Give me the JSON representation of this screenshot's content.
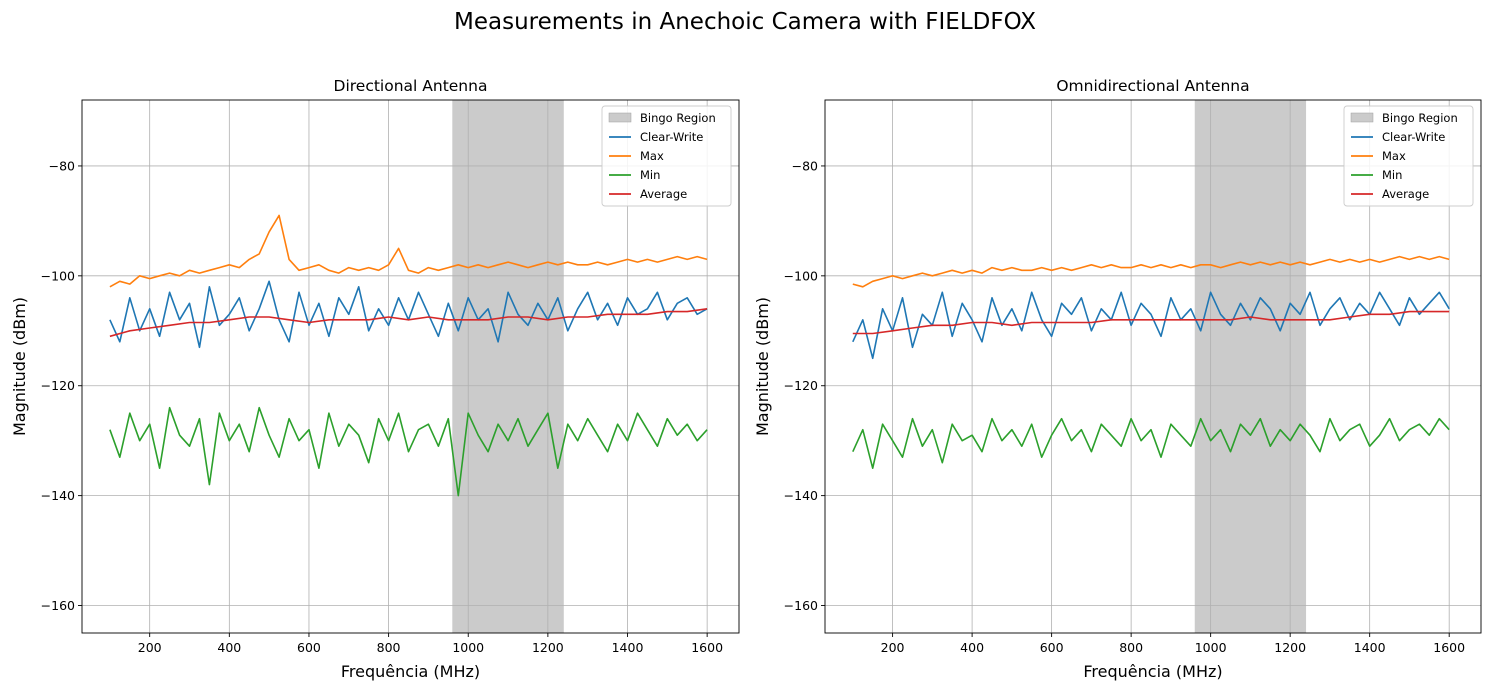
{
  "figure": {
    "suptitle": "Measurements in Anechoic Camera with FIELDFOX"
  },
  "colors": {
    "clear_write": "#1f77b4",
    "max": "#ff7f0e",
    "min": "#2ca02c",
    "average": "#d62728",
    "region": "#bdbdbd",
    "grid": "#b0b0b0"
  },
  "chart_data": [
    {
      "type": "line",
      "title": "Directional Antenna",
      "xlabel": "Frequência (MHz)",
      "ylabel": "Magnitude (dBm)",
      "xlim": [
        30,
        1680
      ],
      "ylim": [
        -165,
        -68
      ],
      "xticks": [
        200,
        400,
        600,
        800,
        1000,
        1200,
        1400,
        1600
      ],
      "yticks": [
        -160,
        -140,
        -120,
        -100,
        -80
      ],
      "grid": true,
      "legend_position": "upper right",
      "shaded_region": {
        "label": "Bingo Region",
        "x_range": [
          960,
          1240
        ]
      },
      "series": [
        {
          "name": "Clear-Write",
          "key": "clear_write",
          "x": [
            100,
            125,
            150,
            175,
            200,
            225,
            250,
            275,
            300,
            325,
            350,
            375,
            400,
            425,
            450,
            475,
            500,
            525,
            550,
            575,
            600,
            625,
            650,
            675,
            700,
            725,
            750,
            775,
            800,
            825,
            850,
            875,
            900,
            925,
            950,
            975,
            1000,
            1025,
            1050,
            1075,
            1100,
            1125,
            1150,
            1175,
            1200,
            1225,
            1250,
            1275,
            1300,
            1325,
            1350,
            1375,
            1400,
            1425,
            1450,
            1475,
            1500,
            1525,
            1550,
            1575,
            1600
          ],
          "y": [
            -108,
            -112,
            -104,
            -110,
            -106,
            -111,
            -103,
            -108,
            -105,
            -113,
            -102,
            -109,
            -107,
            -104,
            -110,
            -106,
            -101,
            -108,
            -112,
            -103,
            -109,
            -105,
            -111,
            -104,
            -107,
            -102,
            -110,
            -106,
            -109,
            -104,
            -108,
            -103,
            -107,
            -111,
            -105,
            -110,
            -104,
            -108,
            -106,
            -112,
            -103,
            -107,
            -109,
            -105,
            -108,
            -104,
            -110,
            -106,
            -103,
            -108,
            -105,
            -109,
            -104,
            -107,
            -106,
            -103,
            -108,
            -105,
            -104,
            -107,
            -106
          ]
        },
        {
          "name": "Max",
          "key": "max",
          "x": [
            100,
            125,
            150,
            175,
            200,
            225,
            250,
            275,
            300,
            325,
            350,
            375,
            400,
            425,
            450,
            475,
            500,
            525,
            550,
            575,
            600,
            625,
            650,
            675,
            700,
            725,
            750,
            775,
            800,
            825,
            850,
            875,
            900,
            925,
            950,
            975,
            1000,
            1025,
            1050,
            1075,
            1100,
            1125,
            1150,
            1175,
            1200,
            1225,
            1250,
            1275,
            1300,
            1325,
            1350,
            1375,
            1400,
            1425,
            1450,
            1475,
            1500,
            1525,
            1550,
            1575,
            1600
          ],
          "y": [
            -102,
            -101,
            -101.5,
            -100,
            -100.5,
            -100,
            -99.5,
            -100,
            -99,
            -99.5,
            -99,
            -98.5,
            -98,
            -98.5,
            -97,
            -96,
            -92,
            -89,
            -97,
            -99,
            -98.5,
            -98,
            -99,
            -99.5,
            -98.5,
            -99,
            -98.5,
            -99,
            -98,
            -95,
            -99,
            -99.5,
            -98.5,
            -99,
            -98.5,
            -98,
            -98.5,
            -98,
            -98.5,
            -98,
            -97.5,
            -98,
            -98.5,
            -98,
            -97.5,
            -98,
            -97.5,
            -98,
            -98,
            -97.5,
            -98,
            -97.5,
            -97,
            -97.5,
            -97,
            -97.5,
            -97,
            -96.5,
            -97,
            -96.5,
            -97
          ]
        },
        {
          "name": "Min",
          "key": "min",
          "x": [
            100,
            125,
            150,
            175,
            200,
            225,
            250,
            275,
            300,
            325,
            350,
            375,
            400,
            425,
            450,
            475,
            500,
            525,
            550,
            575,
            600,
            625,
            650,
            675,
            700,
            725,
            750,
            775,
            800,
            825,
            850,
            875,
            900,
            925,
            950,
            975,
            1000,
            1025,
            1050,
            1075,
            1100,
            1125,
            1150,
            1175,
            1200,
            1225,
            1250,
            1275,
            1300,
            1325,
            1350,
            1375,
            1400,
            1425,
            1450,
            1475,
            1500,
            1525,
            1550,
            1575,
            1600
          ],
          "y": [
            -128,
            -133,
            -125,
            -130,
            -127,
            -135,
            -124,
            -129,
            -131,
            -126,
            -138,
            -125,
            -130,
            -127,
            -132,
            -124,
            -129,
            -133,
            -126,
            -130,
            -128,
            -135,
            -125,
            -131,
            -127,
            -129,
            -134,
            -126,
            -130,
            -125,
            -132,
            -128,
            -127,
            -131,
            -126,
            -140,
            -125,
            -129,
            -132,
            -127,
            -130,
            -126,
            -131,
            -128,
            -125,
            -135,
            -127,
            -130,
            -126,
            -129,
            -132,
            -127,
            -130,
            -125,
            -128,
            -131,
            -126,
            -129,
            -127,
            -130,
            -128
          ]
        },
        {
          "name": "Average",
          "key": "average",
          "x": [
            100,
            150,
            200,
            250,
            300,
            350,
            400,
            450,
            500,
            550,
            600,
            650,
            700,
            750,
            800,
            850,
            900,
            950,
            1000,
            1050,
            1100,
            1150,
            1200,
            1250,
            1300,
            1350,
            1400,
            1450,
            1500,
            1550,
            1600
          ],
          "y": [
            -111,
            -110,
            -109.5,
            -109,
            -108.5,
            -108.5,
            -108,
            -107.5,
            -107.5,
            -108,
            -108.5,
            -108,
            -108,
            -108,
            -107.5,
            -108,
            -107.5,
            -108,
            -108,
            -108,
            -107.5,
            -107.5,
            -108,
            -107.5,
            -107.5,
            -107,
            -107,
            -107,
            -106.5,
            -106.5,
            -106
          ]
        }
      ]
    },
    {
      "type": "line",
      "title": "Omnidirectional Antenna",
      "xlabel": "Frequência (MHz)",
      "ylabel": "Magnitude (dBm)",
      "xlim": [
        30,
        1680
      ],
      "ylim": [
        -165,
        -68
      ],
      "xticks": [
        200,
        400,
        600,
        800,
        1000,
        1200,
        1400,
        1600
      ],
      "yticks": [
        -160,
        -140,
        -120,
        -100,
        -80
      ],
      "grid": true,
      "legend_position": "upper right",
      "shaded_region": {
        "label": "Bingo Region",
        "x_range": [
          960,
          1240
        ]
      },
      "series": [
        {
          "name": "Clear-Write",
          "key": "clear_write",
          "x": [
            100,
            125,
            150,
            175,
            200,
            225,
            250,
            275,
            300,
            325,
            350,
            375,
            400,
            425,
            450,
            475,
            500,
            525,
            550,
            575,
            600,
            625,
            650,
            675,
            700,
            725,
            750,
            775,
            800,
            825,
            850,
            875,
            900,
            925,
            950,
            975,
            1000,
            1025,
            1050,
            1075,
            1100,
            1125,
            1150,
            1175,
            1200,
            1225,
            1250,
            1275,
            1300,
            1325,
            1350,
            1375,
            1400,
            1425,
            1450,
            1475,
            1500,
            1525,
            1550,
            1575,
            1600
          ],
          "y": [
            -112,
            -108,
            -115,
            -106,
            -110,
            -104,
            -113,
            -107,
            -109,
            -103,
            -111,
            -105,
            -108,
            -112,
            -104,
            -109,
            -106,
            -110,
            -103,
            -108,
            -111,
            -105,
            -107,
            -104,
            -110,
            -106,
            -108,
            -103,
            -109,
            -105,
            -107,
            -111,
            -104,
            -108,
            -106,
            -110,
            -103,
            -107,
            -109,
            -105,
            -108,
            -104,
            -106,
            -110,
            -105,
            -107,
            -103,
            -109,
            -106,
            -104,
            -108,
            -105,
            -107,
            -103,
            -106,
            -109,
            -104,
            -107,
            -105,
            -103,
            -106
          ]
        },
        {
          "name": "Max",
          "key": "max",
          "x": [
            100,
            125,
            150,
            175,
            200,
            225,
            250,
            275,
            300,
            325,
            350,
            375,
            400,
            425,
            450,
            475,
            500,
            525,
            550,
            575,
            600,
            625,
            650,
            675,
            700,
            725,
            750,
            775,
            800,
            825,
            850,
            875,
            900,
            925,
            950,
            975,
            1000,
            1025,
            1050,
            1075,
            1100,
            1125,
            1150,
            1175,
            1200,
            1225,
            1250,
            1275,
            1300,
            1325,
            1350,
            1375,
            1400,
            1425,
            1450,
            1475,
            1500,
            1525,
            1550,
            1575,
            1600
          ],
          "y": [
            -101.5,
            -102,
            -101,
            -100.5,
            -100,
            -100.5,
            -100,
            -99.5,
            -100,
            -99.5,
            -99,
            -99.5,
            -99,
            -99.5,
            -98.5,
            -99,
            -98.5,
            -99,
            -99,
            -98.5,
            -99,
            -98.5,
            -99,
            -98.5,
            -98,
            -98.5,
            -98,
            -98.5,
            -98.5,
            -98,
            -98.5,
            -98,
            -98.5,
            -98,
            -98.5,
            -98,
            -98,
            -98.5,
            -98,
            -97.5,
            -98,
            -97.5,
            -98,
            -97.5,
            -98,
            -97.5,
            -98,
            -97.5,
            -97,
            -97.5,
            -97,
            -97.5,
            -97,
            -97.5,
            -97,
            -96.5,
            -97,
            -96.5,
            -97,
            -96.5,
            -97
          ]
        },
        {
          "name": "Min",
          "key": "min",
          "x": [
            100,
            125,
            150,
            175,
            200,
            225,
            250,
            275,
            300,
            325,
            350,
            375,
            400,
            425,
            450,
            475,
            500,
            525,
            550,
            575,
            600,
            625,
            650,
            675,
            700,
            725,
            750,
            775,
            800,
            825,
            850,
            875,
            900,
            925,
            950,
            975,
            1000,
            1025,
            1050,
            1075,
            1100,
            1125,
            1150,
            1175,
            1200,
            1225,
            1250,
            1275,
            1300,
            1325,
            1350,
            1375,
            1400,
            1425,
            1450,
            1475,
            1500,
            1525,
            1550,
            1575,
            1600
          ],
          "y": [
            -132,
            -128,
            -135,
            -127,
            -130,
            -133,
            -126,
            -131,
            -128,
            -134,
            -127,
            -130,
            -129,
            -132,
            -126,
            -130,
            -128,
            -131,
            -127,
            -133,
            -129,
            -126,
            -130,
            -128,
            -132,
            -127,
            -129,
            -131,
            -126,
            -130,
            -128,
            -133,
            -127,
            -129,
            -131,
            -126,
            -130,
            -128,
            -132,
            -127,
            -129,
            -126,
            -131,
            -128,
            -130,
            -127,
            -129,
            -132,
            -126,
            -130,
            -128,
            -127,
            -131,
            -129,
            -126,
            -130,
            -128,
            -127,
            -129,
            -126,
            -128
          ]
        },
        {
          "name": "Average",
          "key": "average",
          "x": [
            100,
            150,
            200,
            250,
            300,
            350,
            400,
            450,
            500,
            550,
            600,
            650,
            700,
            750,
            800,
            850,
            900,
            950,
            1000,
            1050,
            1100,
            1150,
            1200,
            1250,
            1300,
            1350,
            1400,
            1450,
            1500,
            1550,
            1600
          ],
          "y": [
            -110.5,
            -110.5,
            -110,
            -109.5,
            -109,
            -109,
            -108.5,
            -108.5,
            -109,
            -108.5,
            -108.5,
            -108.5,
            -108.5,
            -108,
            -108,
            -108,
            -108,
            -108,
            -108,
            -108,
            -107.5,
            -108,
            -108,
            -108,
            -108,
            -107.5,
            -107,
            -107,
            -106.5,
            -106.5,
            -106.5
          ]
        }
      ]
    }
  ]
}
